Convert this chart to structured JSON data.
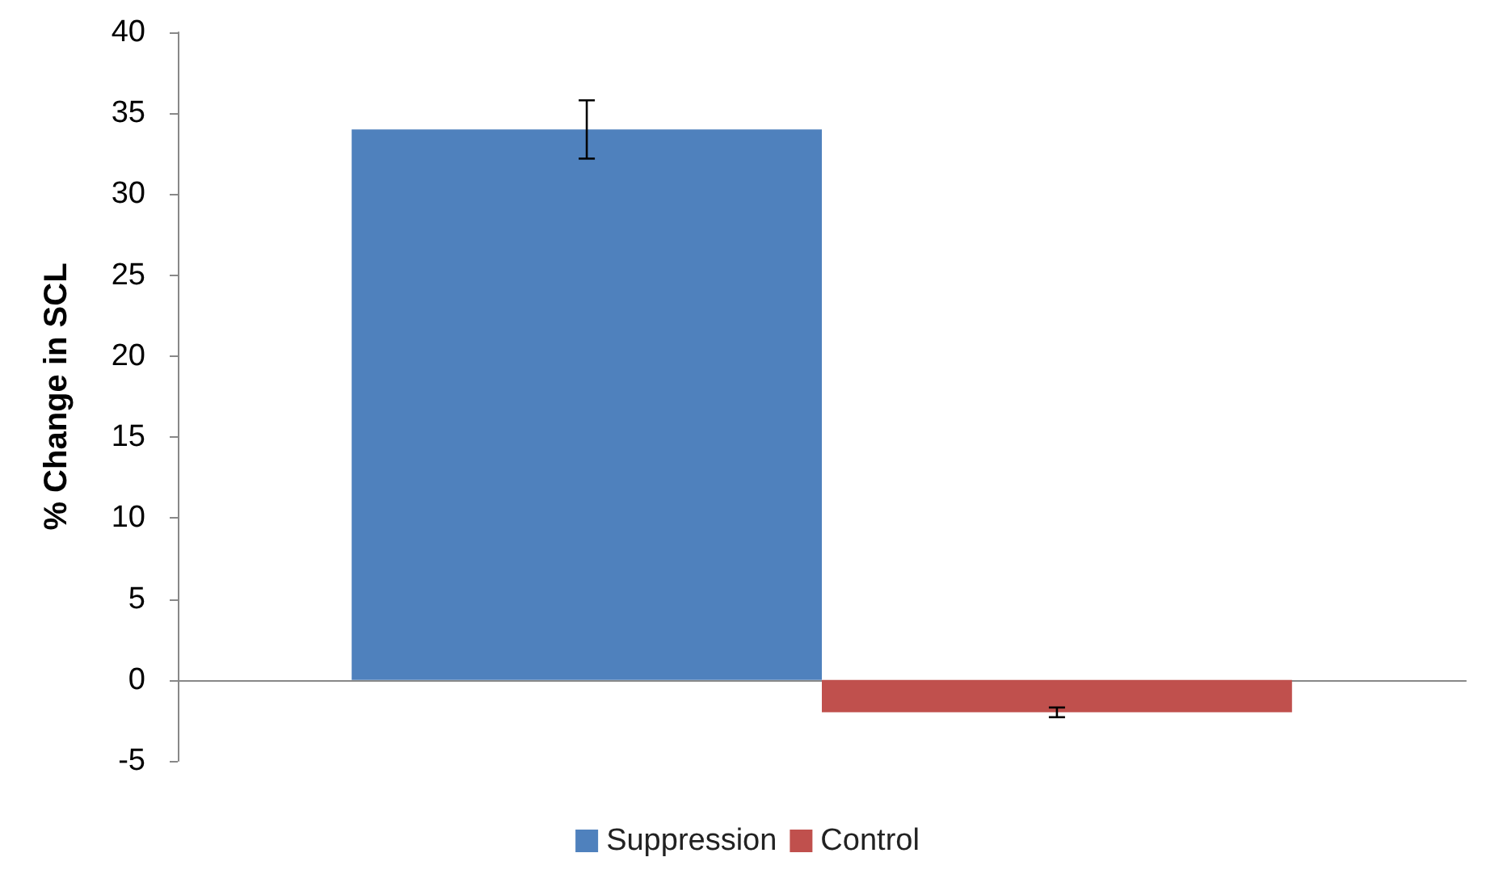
{
  "chart_data": {
    "type": "bar",
    "ylabel": "% Change in SCL",
    "categories": [
      null
    ],
    "series": [
      {
        "name": "Suppression",
        "color": "#4f81bd",
        "values": [
          34
        ],
        "errors": [
          1.8
        ]
      },
      {
        "name": "Control",
        "color": "#c0504d",
        "values": [
          -2
        ],
        "errors": [
          0.3
        ]
      }
    ],
    "ylim": [
      -5,
      40
    ],
    "yticks": [
      -5,
      0,
      5,
      10,
      15,
      20,
      25,
      30,
      35,
      40
    ],
    "legend": "bottom"
  }
}
